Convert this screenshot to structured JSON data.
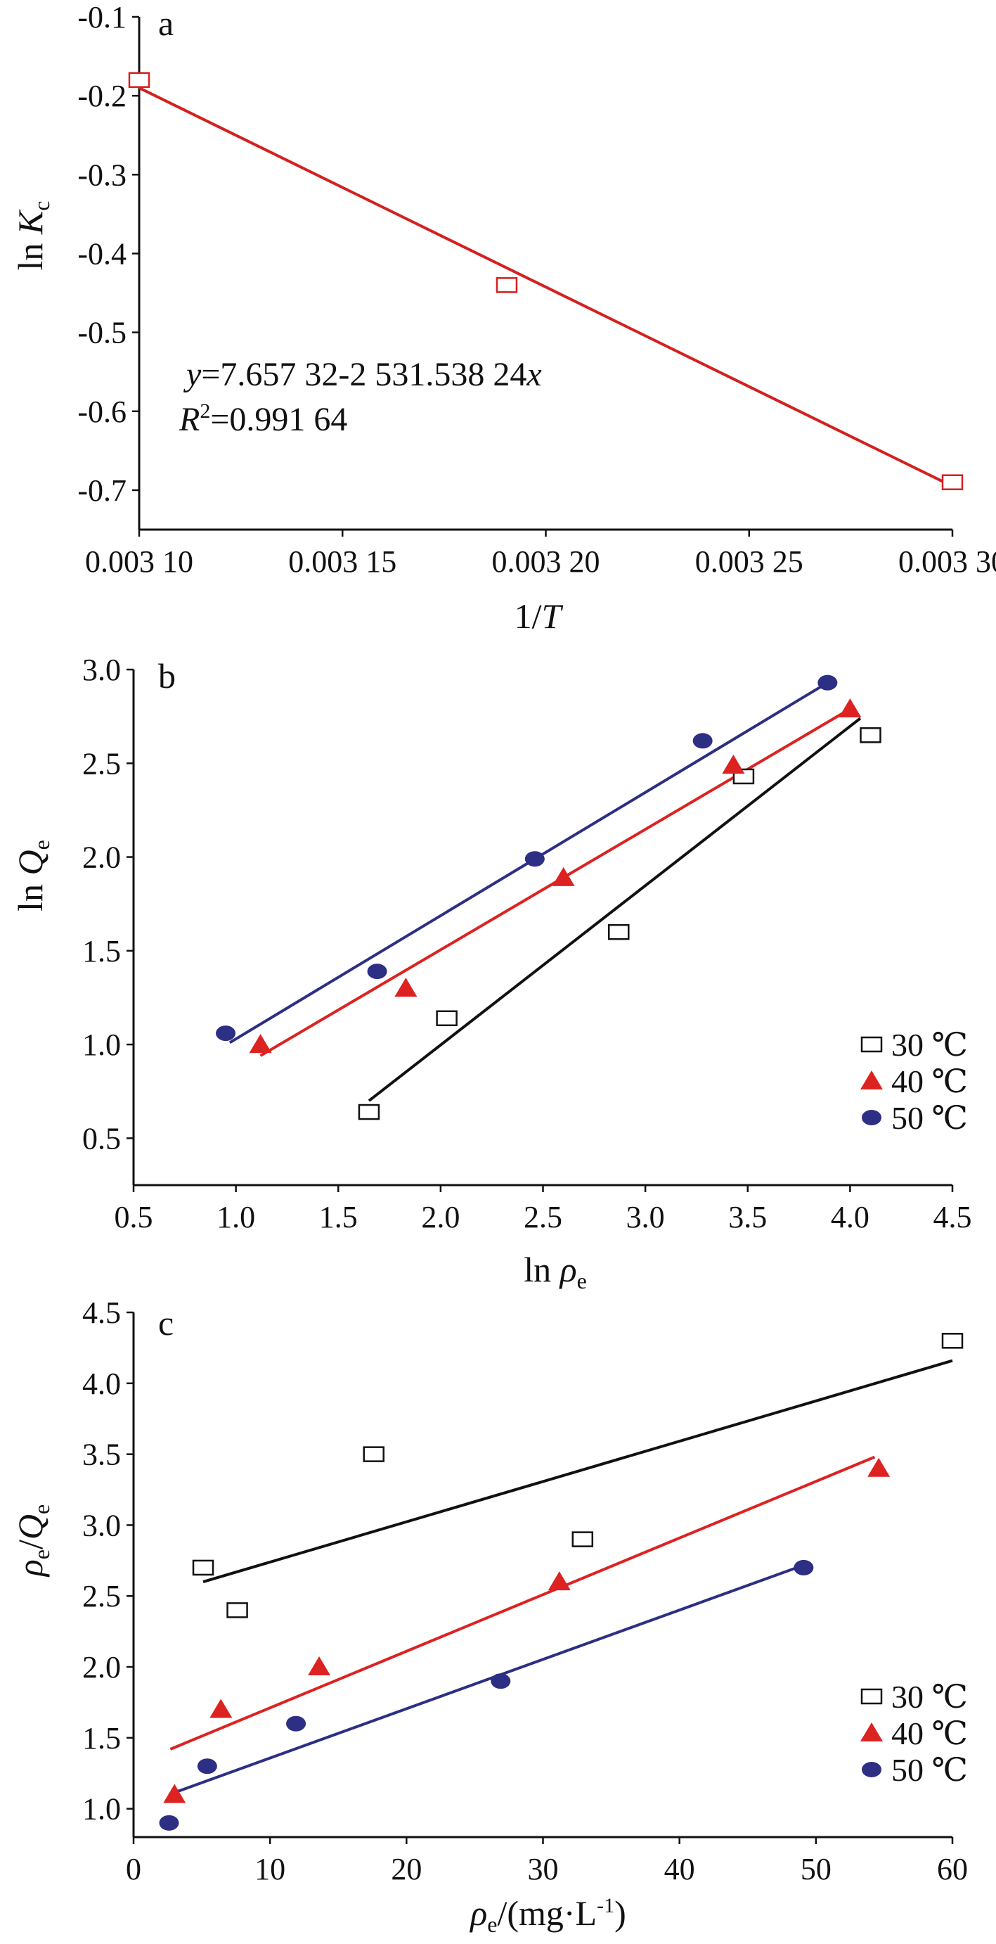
{
  "chart_data": [
    {
      "panel": "a",
      "type": "scatter",
      "xlabel_main": "1/",
      "xlabel_var": "T",
      "ylabel_main": "ln ",
      "ylabel_var": "K",
      "ylabel_sub": "c",
      "xlim": [
        0.0031,
        0.0033
      ],
      "ylim": [
        -0.75,
        -0.1
      ],
      "xticks": [
        0.0031,
        0.00315,
        0.0032,
        0.00325,
        0.0033
      ],
      "xtick_labels": [
        "0.003 10",
        "0.003 15",
        "0.003 20",
        "0.003 25",
        "0.003 30"
      ],
      "yticks": [
        -0.1,
        -0.2,
        -0.3,
        -0.4,
        -0.5,
        -0.6,
        -0.7
      ],
      "ytick_labels": [
        "-0.1",
        "-0.2",
        "-0.3",
        "-0.4",
        "-0.5",
        "-0.6",
        "-0.7"
      ],
      "series": [
        {
          "color": "#d42020",
          "marker": "square",
          "x": [
            0.0031,
            0.0031904,
            0.0033
          ],
          "y": [
            -0.18,
            -0.44,
            -0.69
          ],
          "fit": {
            "x": [
              0.0031,
              0.0033
            ],
            "y": [
              -0.19,
              -0.695
            ]
          }
        }
      ],
      "annotation": {
        "eq_var_y": "y",
        "eq_body": "=7.657 32-2 531.538 24",
        "eq_var_x": "x",
        "r2_var": "R",
        "r2_sup": "2",
        "r2_body": "=0.991 64"
      }
    },
    {
      "panel": "b",
      "type": "scatter",
      "xlabel_main": "ln ",
      "xlabel_var": "ρ",
      "xlabel_sub": "e",
      "ylabel_main": "ln ",
      "ylabel_var": "Q",
      "ylabel_sub": "e",
      "xlim": [
        0.5,
        4.5
      ],
      "ylim": [
        0.25,
        3.0
      ],
      "xticks": [
        0.5,
        1.0,
        1.5,
        2.0,
        2.5,
        3.0,
        3.5,
        4.0,
        4.5
      ],
      "xtick_labels": [
        "0.5",
        "1.0",
        "1.5",
        "2.0",
        "2.5",
        "3.0",
        "3.5",
        "4.0",
        "4.5"
      ],
      "yticks": [
        0.5,
        1.0,
        1.5,
        2.0,
        2.5,
        3.0
      ],
      "ytick_labels": [
        "0.5",
        "1.0",
        "1.5",
        "2.0",
        "2.5",
        "3.0"
      ],
      "legend_position": "bottom-right",
      "series": [
        {
          "name": "30 ℃",
          "color": "#111111",
          "marker": "square",
          "x": [
            1.65,
            2.03,
            2.87,
            3.48,
            4.1
          ],
          "y": [
            0.64,
            1.14,
            1.6,
            2.43,
            2.65
          ],
          "fit": {
            "x": [
              1.65,
              4.05
            ],
            "y": [
              0.7,
              2.74
            ]
          }
        },
        {
          "name": "40 ℃",
          "color": "#dd2222",
          "marker": "triangle",
          "x": [
            1.12,
            1.83,
            2.6,
            3.43,
            4.0
          ],
          "y": [
            1.0,
            1.3,
            1.89,
            2.49,
            2.79
          ],
          "fit": {
            "x": [
              1.12,
              4.0
            ],
            "y": [
              0.94,
              2.79
            ]
          }
        },
        {
          "name": "50 ℃",
          "color": "#2d2f84",
          "marker": "circle",
          "x": [
            0.95,
            1.69,
            2.46,
            3.28,
            3.89
          ],
          "y": [
            1.06,
            1.39,
            1.99,
            2.62,
            2.93
          ],
          "fit": {
            "x": [
              0.97,
              3.89
            ],
            "y": [
              1.01,
              2.93
            ]
          }
        }
      ]
    },
    {
      "panel": "c",
      "type": "scatter",
      "xlabel_var": "ρ",
      "xlabel_sub": "e",
      "xlabel_unit_open": "/(mg·L",
      "xlabel_sup": "-1",
      "xlabel_unit_close": ")",
      "ylabel_var1": "ρ",
      "ylabel_sub1": "e",
      "ylabel_slash": "/",
      "ylabel_var2": "Q",
      "ylabel_sub2": "e",
      "xlim": [
        0,
        60
      ],
      "ylim": [
        0.8,
        4.5
      ],
      "xticks": [
        0,
        10,
        20,
        30,
        40,
        50,
        60
      ],
      "xtick_labels": [
        "0",
        "10",
        "20",
        "30",
        "40",
        "50",
        "60"
      ],
      "yticks": [
        1.0,
        1.5,
        2.0,
        2.5,
        3.0,
        3.5,
        4.0,
        4.5
      ],
      "ytick_labels": [
        "1.0",
        "1.5",
        "2.0",
        "2.5",
        "3.0",
        "3.5",
        "4.0",
        "4.5"
      ],
      "legend_position": "bottom-right",
      "series": [
        {
          "name": "30 ℃",
          "color": "#111111",
          "marker": "square",
          "x": [
            5.1,
            7.6,
            17.6,
            32.9,
            60.0
          ],
          "y": [
            2.7,
            2.4,
            3.5,
            2.9,
            4.3
          ],
          "fit": {
            "x": [
              5.1,
              60.0
            ],
            "y": [
              2.6,
              4.16
            ]
          }
        },
        {
          "name": "40 ℃",
          "color": "#dd2222",
          "marker": "triangle",
          "x": [
            3.0,
            6.4,
            13.6,
            31.2,
            54.6
          ],
          "y": [
            1.1,
            1.7,
            2.0,
            2.6,
            3.4
          ],
          "fit": {
            "x": [
              2.7,
              54.3
            ],
            "y": [
              1.42,
              3.48
            ]
          }
        },
        {
          "name": "50 ℃",
          "color": "#2d2f84",
          "marker": "circle",
          "x": [
            2.6,
            5.4,
            11.9,
            26.9,
            49.1
          ],
          "y": [
            0.9,
            1.3,
            1.6,
            1.9,
            2.7
          ],
          "fit": {
            "x": [
              2.6,
              48.6
            ],
            "y": [
              1.1,
              2.7
            ]
          }
        }
      ]
    }
  ]
}
